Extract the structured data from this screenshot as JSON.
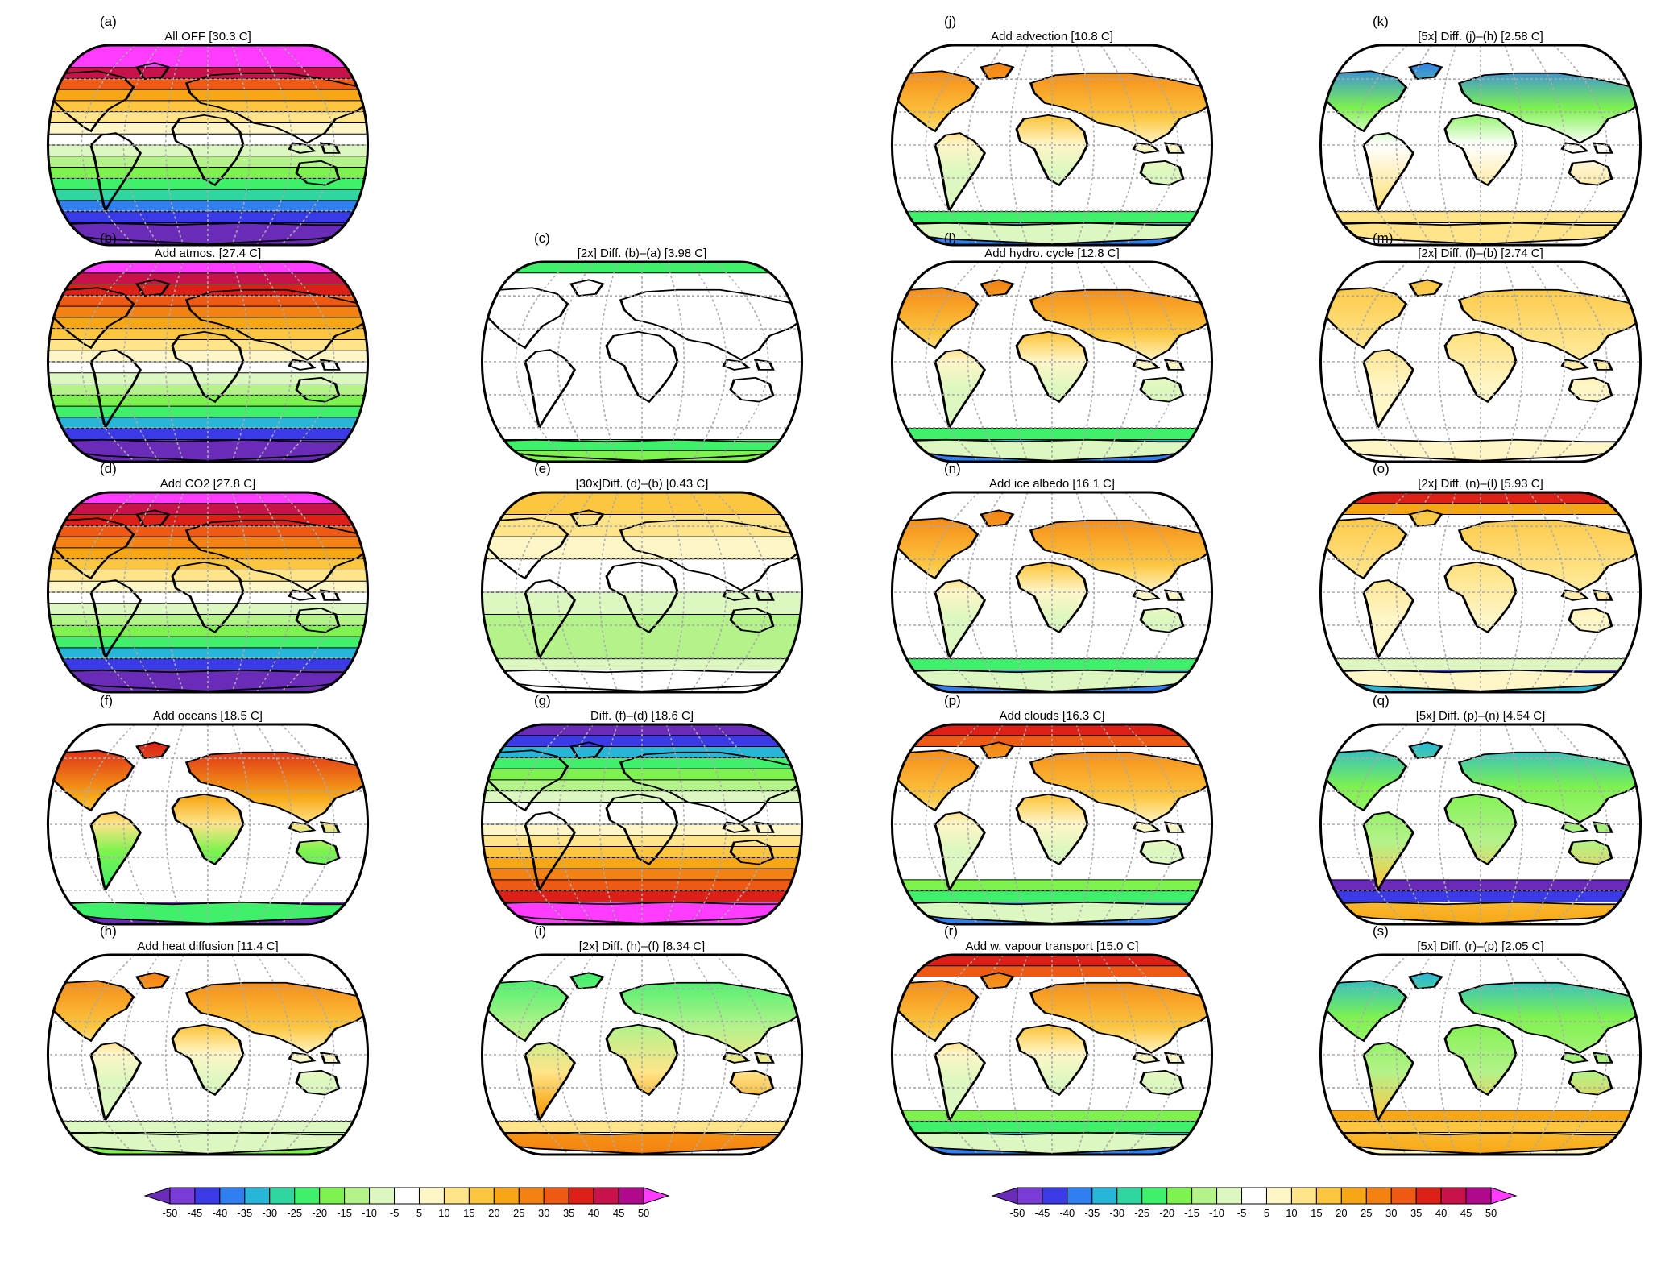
{
  "figure": {
    "panels": [
      {
        "id": "a",
        "letter": "(a)",
        "title": "All OFF  [30.3 C]",
        "field": "alloff"
      },
      {
        "id": "b",
        "letter": "(b)",
        "title": "Add atmos.  [27.4 C]",
        "field": "atmos"
      },
      {
        "id": "c",
        "letter": "(c)",
        "title": "[2x] Diff.  (b)–(a) [3.98 C]",
        "field": "diff_c"
      },
      {
        "id": "d",
        "letter": "(d)",
        "title": "Add CO2  [27.8 C]",
        "field": "atmos"
      },
      {
        "id": "e",
        "letter": "(e)",
        "title": "[30x]Diff.  (d)–(b) [0.43 C]",
        "field": "diff_e"
      },
      {
        "id": "f",
        "letter": "(f)",
        "title": "Add oceans  [18.5 C]",
        "field": "oceans"
      },
      {
        "id": "g",
        "letter": "(g)",
        "title": "Diff.  (f)–(d)      [18.6 C]",
        "field": "diff_g"
      },
      {
        "id": "h",
        "letter": "(h)",
        "title": "Add heat diffusion  [11.4 C]",
        "field": "warm_land"
      },
      {
        "id": "i",
        "letter": "(i)",
        "title": "[2x] Diff.  (h)–(f)      [8.34 C]",
        "field": "diff_i"
      },
      {
        "id": "j",
        "letter": "(j)",
        "title": "Add advection  [10.8 C]",
        "field": "warm_land_cold_s"
      },
      {
        "id": "k",
        "letter": "(k)",
        "title": "[5x]  Diff.  (j)–(h)       [2.58 C]",
        "field": "diff_k"
      },
      {
        "id": "l",
        "letter": "(l)",
        "title": "Add hydro. cycle  [12.8 C]",
        "field": "warm_land_cold_s"
      },
      {
        "id": "m",
        "letter": "(m)",
        "title": "[2x]  Diff.  (l)–(b)       [2.74 C]",
        "field": "diff_m"
      },
      {
        "id": "n",
        "letter": "(n)",
        "title": "Add ice albedo  [16.1 C]",
        "field": "warm_land_cold_s"
      },
      {
        "id": "o",
        "letter": "(o)",
        "title": "[2x]  Diff.  (n)–(l)       [5.93 C]",
        "field": "diff_o"
      },
      {
        "id": "p",
        "letter": "(p)",
        "title": "Add clouds  [16.3 C]",
        "field": "clouds"
      },
      {
        "id": "q",
        "letter": "(q)",
        "title": "[5x]  Diff.  (p)–(n)       [4.54 C]",
        "field": "diff_q"
      },
      {
        "id": "r",
        "letter": "(r)",
        "title": "Add w. vapour transport  [15.0 C]",
        "field": "clouds"
      },
      {
        "id": "s",
        "letter": "(s)",
        "title": "[5x]  Diff.  (r)–(p)       [2.05 C]",
        "field": "diff_s"
      }
    ],
    "colorbar": {
      "ticks": [
        "-50",
        "-45",
        "-40",
        "-35",
        "-30",
        "-25",
        "-20",
        "-15",
        "-10",
        "-5",
        "5",
        "10",
        "15",
        "20",
        "25",
        "30",
        "35",
        "40",
        "45",
        "50"
      ],
      "colors": [
        "#7a3bd6",
        "#3a3ae6",
        "#2f7ff0",
        "#28b6d8",
        "#2fd6a0",
        "#3ef06a",
        "#7ef24e",
        "#b4f28a",
        "#dcf7bf",
        "#ffffff",
        "#fff6c8",
        "#ffe48a",
        "#fcc640",
        "#f7a716",
        "#f48212",
        "#ee5a14",
        "#dc2018",
        "#c8124a",
        "#b00a8c",
        "#f515f5"
      ],
      "low_color": "#6a2bb8",
      "high_color": "#ff3cff"
    }
  }
}
